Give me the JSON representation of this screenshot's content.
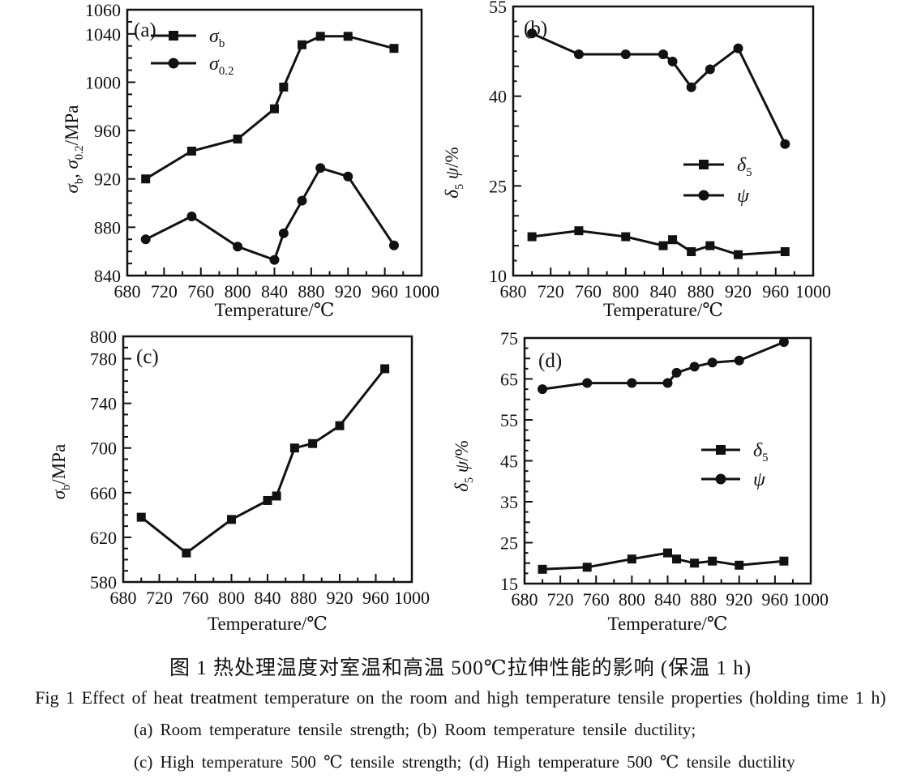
{
  "figure": {
    "caption_zh": "图 1  热处理温度对室温和高温 500℃拉伸性能的影响 (保温 1 h)",
    "caption_en": "Fig 1   Effect of heat treatment temperature on the room and high temperature tensile properties (holding time 1 h)",
    "caption_ab": "(a) Room temperature tensile strength;  (b) Room temperature tensile ductility;",
    "caption_cd": "(c) High temperature 500 ℃ tensile strength;  (d) High temperature 500 ℃ tensile ductility"
  },
  "ink_color": "#111111",
  "background_color": "#ffffff",
  "chart_data": [
    {
      "id": "a",
      "type": "line",
      "panel": "(a)",
      "x": [
        700,
        750,
        800,
        840,
        850,
        870,
        890,
        920,
        970
      ],
      "series": [
        {
          "name": "σ_{b}",
          "marker": "square",
          "values": [
            920,
            943,
            953,
            978,
            996,
            1031,
            1038,
            1038,
            1028
          ]
        },
        {
          "name": "σ_{0.2}",
          "marker": "circle",
          "values": [
            870,
            889,
            864,
            853,
            875,
            902,
            929,
            922,
            865
          ]
        }
      ],
      "xlabel": "Temperature/℃",
      "ylabel": "σ_{b}, σ_{0.2}/MPa",
      "xlim": [
        680,
        1000
      ],
      "xticks": [
        680,
        720,
        760,
        800,
        840,
        880,
        920,
        960,
        1000
      ],
      "xminor_step": 20,
      "ylim": [
        840,
        1060
      ],
      "yticks": [
        840,
        880,
        920,
        960,
        1000,
        1040,
        1060
      ],
      "yminor_step": 10,
      "grid": false,
      "legend_position": "top-left"
    },
    {
      "id": "b",
      "type": "line",
      "panel": "(b)",
      "x": [
        700,
        750,
        800,
        840,
        850,
        870,
        890,
        920,
        970
      ],
      "series": [
        {
          "name": "δ_{5}",
          "marker": "square",
          "values": [
            16.5,
            17.5,
            16.5,
            15,
            16,
            14,
            15,
            13.5,
            14
          ]
        },
        {
          "name": "ψ",
          "marker": "circle",
          "values": [
            50.5,
            47,
            47,
            47,
            45.8,
            41.5,
            44.5,
            48,
            32
          ]
        }
      ],
      "xlabel": "Temperature/℃",
      "ylabel": "δ_{5} ψ/%",
      "xlim": [
        680,
        1000
      ],
      "xticks": [
        680,
        720,
        760,
        800,
        840,
        880,
        920,
        960,
        1000
      ],
      "xminor_step": 20,
      "ylim": [
        10,
        55
      ],
      "yticks": [
        10,
        25,
        40,
        55
      ],
      "yminor_step": 2.5,
      "ymid_step": 5,
      "grid": false,
      "legend_position": "center-right"
    },
    {
      "id": "c",
      "type": "line",
      "panel": "(c)",
      "x": [
        700,
        750,
        800,
        840,
        850,
        870,
        890,
        920,
        970
      ],
      "series": [
        {
          "name": "σ_{b}",
          "marker": "square",
          "values": [
            638,
            606,
            636,
            653,
            657,
            700,
            704,
            720,
            771
          ]
        }
      ],
      "xlabel": "Temperature/℃",
      "ylabel": "σ_{b}/MPa",
      "xlim": [
        680,
        1000
      ],
      "xticks": [
        680,
        720,
        760,
        800,
        840,
        880,
        920,
        960,
        1000
      ],
      "xminor_step": 20,
      "ylim": [
        580,
        800
      ],
      "yticks": [
        580,
        620,
        660,
        700,
        740,
        780,
        800
      ],
      "yminor_step": 10,
      "grid": false,
      "legend_position": "none"
    },
    {
      "id": "d",
      "type": "line",
      "panel": "(d)",
      "x": [
        700,
        750,
        800,
        840,
        850,
        870,
        890,
        920,
        970
      ],
      "series": [
        {
          "name": "δ_{5}",
          "marker": "square",
          "values": [
            18.5,
            19,
            21,
            22.5,
            21,
            20,
            20.5,
            19.5,
            20.5
          ]
        },
        {
          "name": "ψ",
          "marker": "circle",
          "values": [
            62.5,
            64,
            64,
            64,
            66.5,
            68,
            69,
            69.5,
            74
          ]
        }
      ],
      "xlabel": "Temperature/℃",
      "ylabel": "δ_{5} ψ/%",
      "xlim": [
        680,
        1000
      ],
      "xticks": [
        680,
        720,
        760,
        800,
        840,
        880,
        920,
        960,
        1000
      ],
      "xminor_step": 20,
      "ylim": [
        15,
        75
      ],
      "yticks": [
        15,
        25,
        35,
        45,
        55,
        65,
        75
      ],
      "yminor_step": 2.5,
      "ymid_step": 5,
      "grid": false,
      "legend_position": "center-right"
    }
  ]
}
